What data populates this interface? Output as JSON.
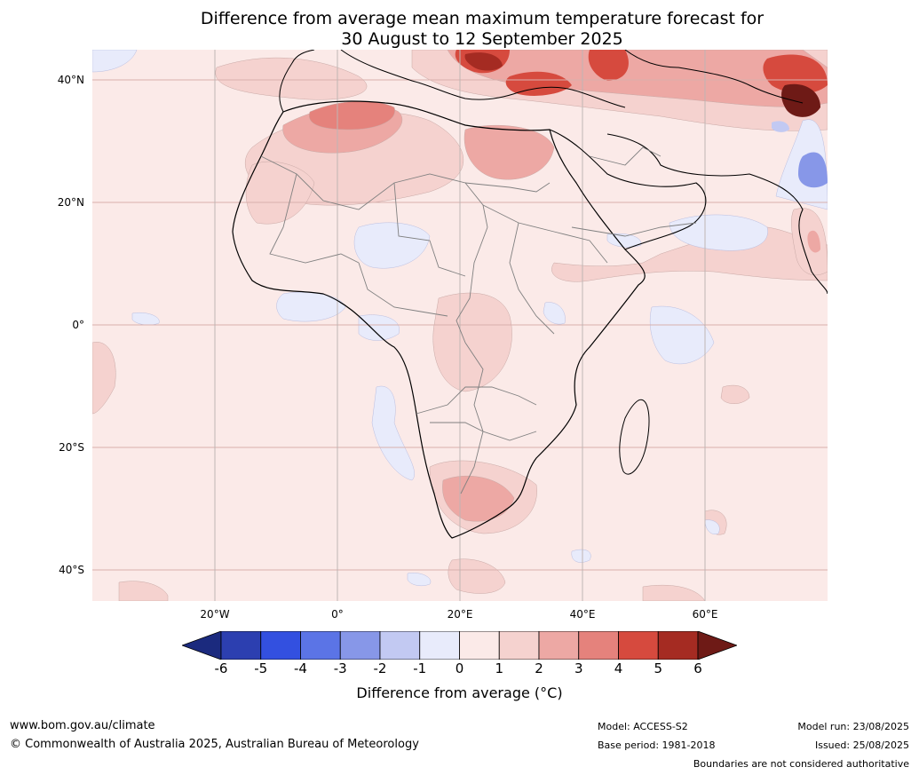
{
  "title_line1": "Difference from average mean maximum temperature forecast for",
  "title_line2": "30 August to 12 September 2025",
  "lat_labels": [
    "40°N",
    "20°N",
    "0°",
    "20°S",
    "40°S"
  ],
  "lon_labels": [
    "20°W",
    "0°",
    "20°E",
    "40°E",
    "60°E"
  ],
  "colorbar": {
    "ticks": [
      "-6",
      "-5",
      "-4",
      "-3",
      "-2",
      "-1",
      "0",
      "1",
      "2",
      "3",
      "4",
      "5",
      "6"
    ],
    "colors": [
      "#1b2a7e",
      "#2c3fb0",
      "#3350e0",
      "#5b74e6",
      "#8797e8",
      "#c2c9f2",
      "#e8ebfb",
      "#fbeae8",
      "#f5d2cf",
      "#eda8a4",
      "#e5827c",
      "#d64a3e",
      "#a52b22",
      "#6e1a16"
    ],
    "label": "Difference from average (°C)"
  },
  "footer": {
    "website": "www.bom.gov.au/climate",
    "copyright": "© Commonwealth of Australia 2025, Australian Bureau of Meteorology",
    "model": "Model: ACCESS-S2",
    "base_period": "Base period: 1981-2018",
    "model_run": "Model run: 23/08/2025",
    "issued": "Issued: 25/08/2025",
    "disclaimer": "Boundaries are not considered authoritative"
  }
}
